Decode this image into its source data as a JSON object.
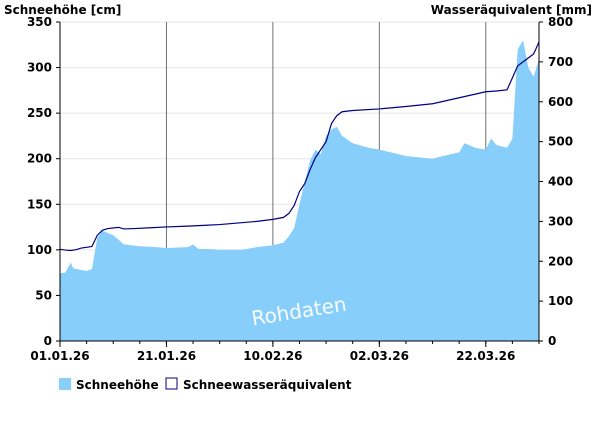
{
  "chart_data": {
    "type": "area",
    "watermark": "Rohdaten",
    "y_left_label": "Schneehöhe [cm]",
    "y_right_label": "Wasseräquivalent [mm]",
    "y_left_lim": [
      0,
      350
    ],
    "y_right_lim": [
      0,
      800
    ],
    "y_left_ticks": [
      0,
      50,
      100,
      150,
      200,
      250,
      300,
      350
    ],
    "y_right_ticks": [
      0,
      100,
      200,
      300,
      400,
      500,
      600,
      700,
      800
    ],
    "x_lim_days": [
      0,
      90
    ],
    "x_ticks": [
      {
        "day": 0,
        "label": "01.01.26"
      },
      {
        "day": 20,
        "label": "21.01.26"
      },
      {
        "day": 40,
        "label": "10.02.26"
      },
      {
        "day": 60,
        "label": "02.03.26"
      },
      {
        "day": 80,
        "label": "22.03.26"
      }
    ],
    "grid": true,
    "legend_position": "bottom-left",
    "series": [
      {
        "name": "Schneehöhe",
        "axis": "left",
        "style": "area",
        "color": "#87cefa",
        "points": [
          [
            0,
            74
          ],
          [
            1,
            75
          ],
          [
            2,
            86
          ],
          [
            2.5,
            80
          ],
          [
            3,
            79
          ],
          [
            5,
            77
          ],
          [
            6,
            79
          ],
          [
            7,
            113
          ],
          [
            8,
            121
          ],
          [
            10,
            116
          ],
          [
            12,
            106
          ],
          [
            15,
            104
          ],
          [
            18,
            103
          ],
          [
            20,
            102
          ],
          [
            24,
            103
          ],
          [
            25,
            106
          ],
          [
            26,
            101
          ],
          [
            28,
            101
          ],
          [
            30,
            100
          ],
          [
            34,
            100
          ],
          [
            37,
            103
          ],
          [
            40,
            105
          ],
          [
            42,
            108
          ],
          [
            43,
            115
          ],
          [
            44,
            124
          ],
          [
            45,
            150
          ],
          [
            46,
            175
          ],
          [
            47,
            198
          ],
          [
            48,
            210
          ],
          [
            49,
            205
          ],
          [
            50,
            225
          ],
          [
            51,
            232
          ],
          [
            52,
            235
          ],
          [
            53,
            225
          ],
          [
            55,
            217
          ],
          [
            58,
            212
          ],
          [
            60,
            210
          ],
          [
            65,
            203
          ],
          [
            70,
            200
          ],
          [
            72,
            203
          ],
          [
            75,
            207
          ],
          [
            76,
            217
          ],
          [
            78,
            212
          ],
          [
            80,
            210
          ],
          [
            81,
            222
          ],
          [
            82,
            215
          ],
          [
            84,
            212
          ],
          [
            85,
            222
          ],
          [
            86,
            320
          ],
          [
            87,
            330
          ],
          [
            88,
            300
          ],
          [
            89,
            290
          ],
          [
            90,
            310
          ]
        ]
      },
      {
        "name": "Schneewasseräquivalent",
        "axis": "right",
        "style": "line",
        "color": "#000080",
        "points": [
          [
            0,
            230
          ],
          [
            1,
            228
          ],
          [
            2,
            227
          ],
          [
            3,
            229
          ],
          [
            4,
            233
          ],
          [
            5,
            235
          ],
          [
            6,
            237
          ],
          [
            7,
            265
          ],
          [
            8,
            278
          ],
          [
            9,
            282
          ],
          [
            11,
            285
          ],
          [
            12,
            281
          ],
          [
            14,
            282
          ],
          [
            17,
            284
          ],
          [
            20,
            286
          ],
          [
            24,
            288
          ],
          [
            27,
            290
          ],
          [
            30,
            292
          ],
          [
            37,
            300
          ],
          [
            40,
            305
          ],
          [
            42,
            310
          ],
          [
            43,
            320
          ],
          [
            44,
            340
          ],
          [
            45,
            375
          ],
          [
            46,
            395
          ],
          [
            47,
            430
          ],
          [
            48,
            460
          ],
          [
            50,
            500
          ],
          [
            51,
            545
          ],
          [
            52,
            565
          ],
          [
            53,
            575
          ],
          [
            55,
            578
          ],
          [
            60,
            582
          ],
          [
            65,
            588
          ],
          [
            70,
            595
          ],
          [
            75,
            610
          ],
          [
            80,
            625
          ],
          [
            82,
            627
          ],
          [
            84,
            630
          ],
          [
            85,
            660
          ],
          [
            86,
            690
          ],
          [
            87,
            700
          ],
          [
            88,
            710
          ],
          [
            89,
            720
          ],
          [
            90,
            750
          ]
        ]
      }
    ]
  }
}
